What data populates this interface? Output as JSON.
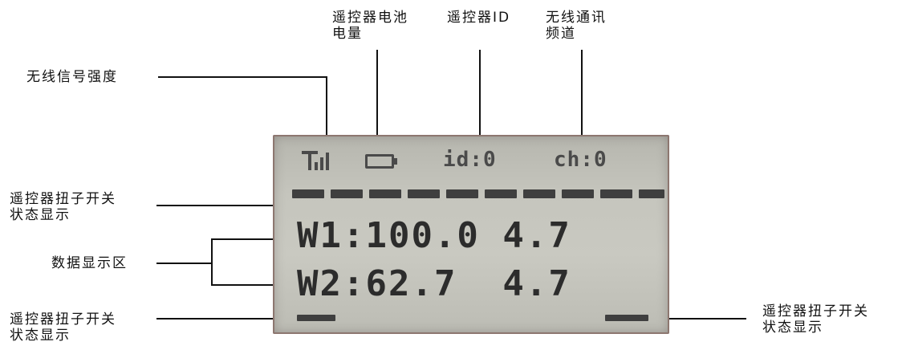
{
  "labels": {
    "battery": "遥控器电池\n电量",
    "remote_id": "遥控器ID",
    "channel": "无线通讯\n频道",
    "signal": "无线信号强度",
    "switch_top": "遥控器扭子开关\n状态显示",
    "data_area": "数据显示区",
    "switch_bottom_left": "遥控器扭子开关\n状态显示",
    "switch_bottom_right": "遥控器扭子开关\n状态显示"
  },
  "lcd": {
    "id_text": "id:0",
    "ch_text": "ch:0",
    "row1": "W1:100.0 4.7",
    "row2": "W2:62.7  4.7",
    "top_switch_segments": 10
  }
}
